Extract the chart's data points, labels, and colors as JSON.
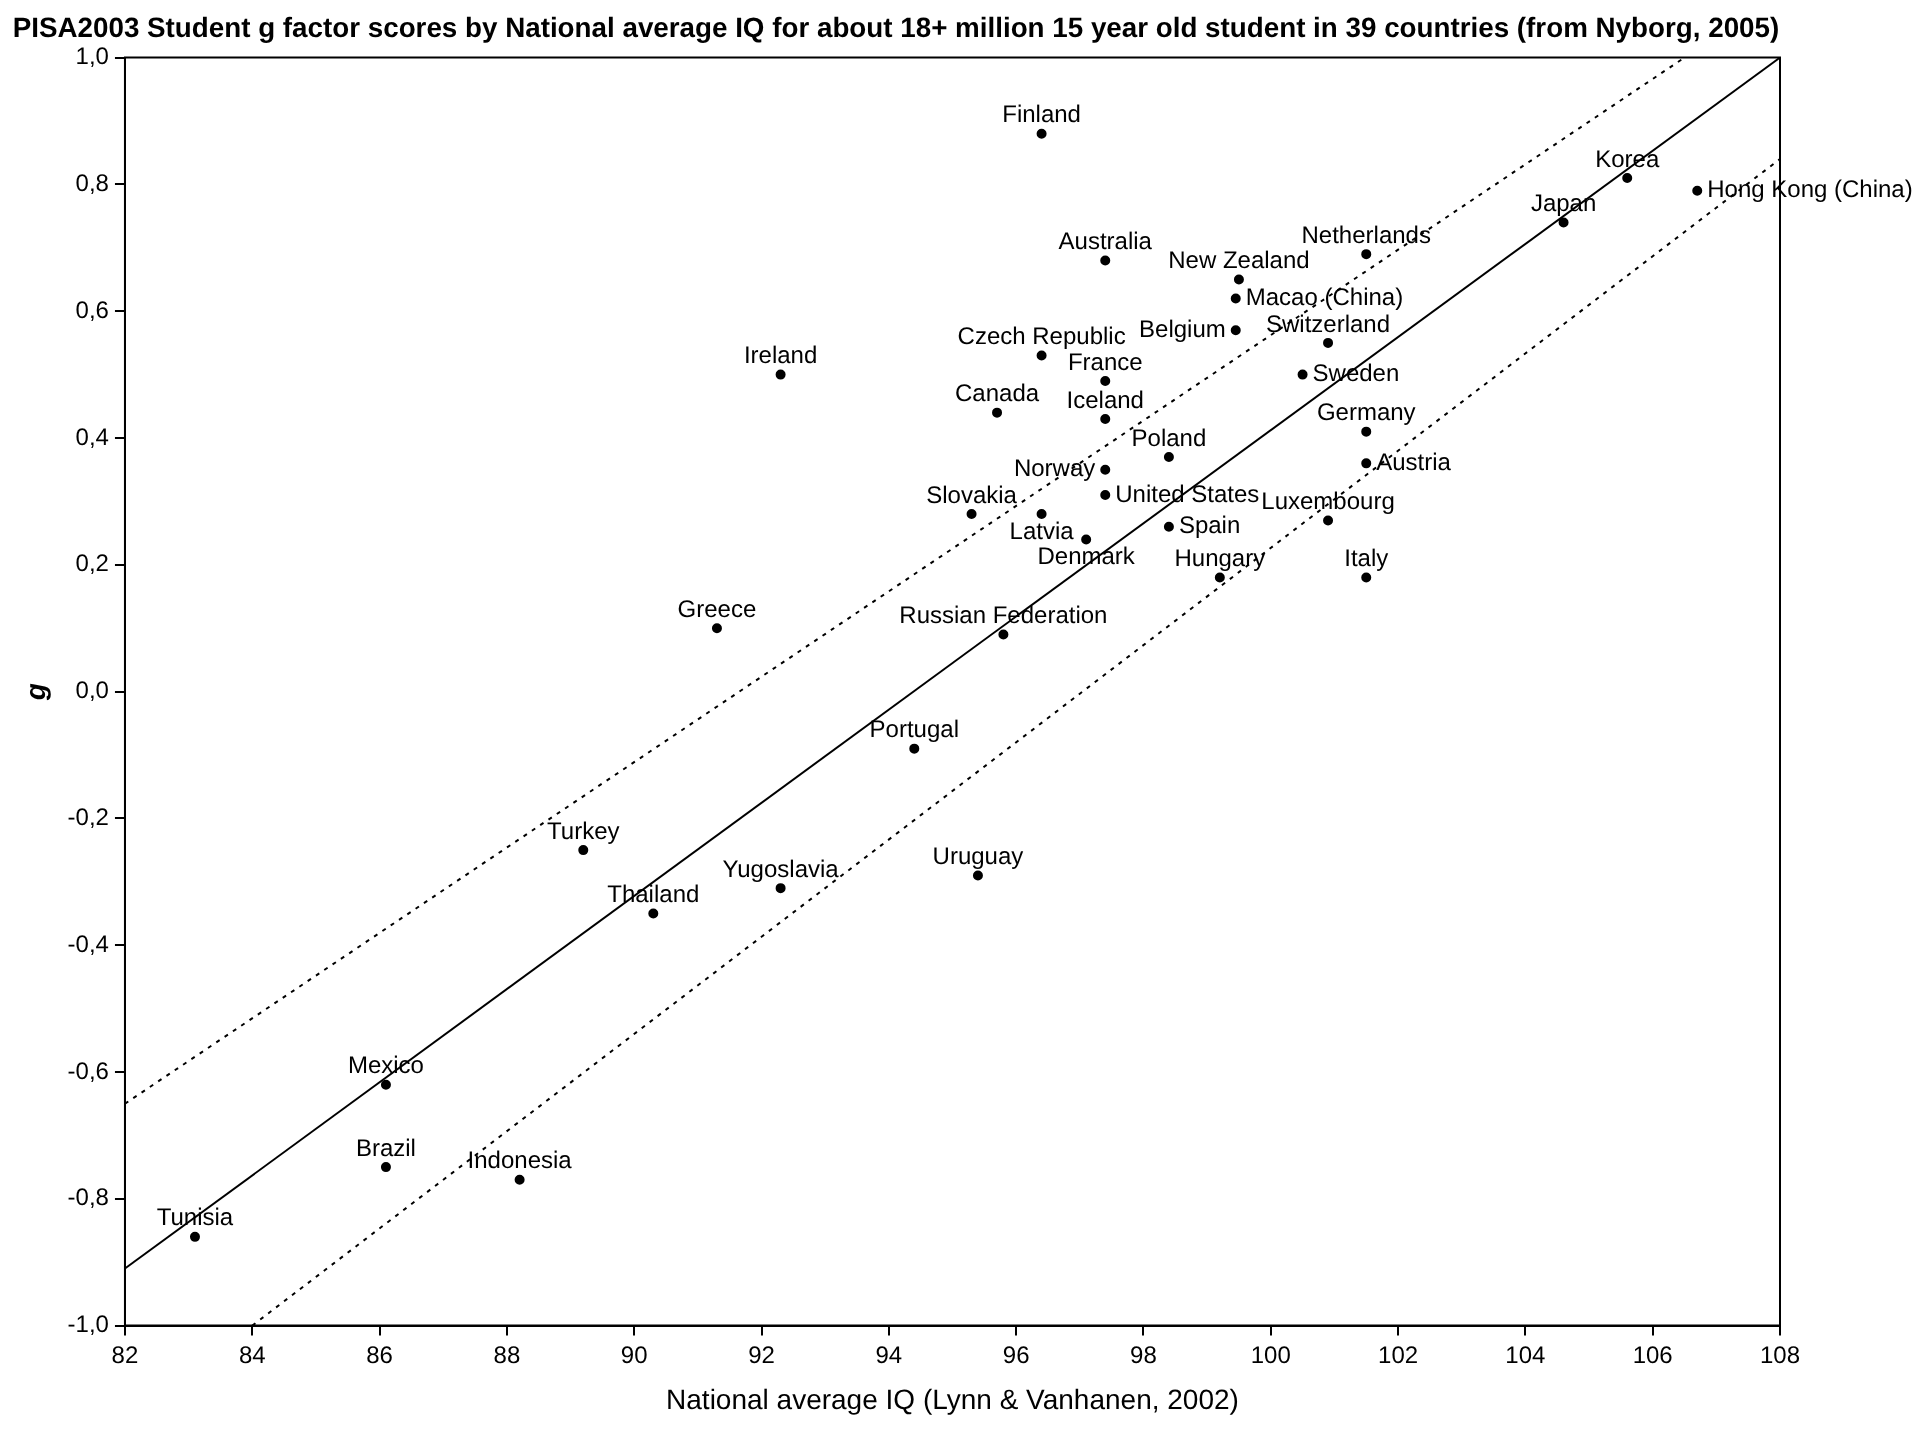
{
  "chart_data": {
    "type": "scatter",
    "title": "PISA2003 Student g factor scores by National average IQ for about 18+ million 15 year old student in 39 countries (from Nyborg, 2005)",
    "xlabel": "National average IQ (Lynn & Vanhanen, 2002)",
    "ylabel": "g",
    "xlim": [
      82,
      108
    ],
    "xticks": [
      82,
      84,
      86,
      88,
      90,
      92,
      94,
      96,
      98,
      100,
      102,
      104,
      106,
      108
    ],
    "ylim": [
      -1.0,
      1.0
    ],
    "yticks": [
      {
        "value": -1.0,
        "label": "-1,0"
      },
      {
        "value": -0.8,
        "label": "-0,8"
      },
      {
        "value": -0.6,
        "label": "-0,6"
      },
      {
        "value": -0.4,
        "label": "-0,4"
      },
      {
        "value": -0.2,
        "label": "-0,2"
      },
      {
        "value": 0,
        "label": "0,0"
      },
      {
        "value": 0.2,
        "label": "0,2"
      },
      {
        "value": 0.4,
        "label": "0,4"
      },
      {
        "value": 0.6,
        "label": "0,6"
      },
      {
        "value": 0.8,
        "label": "0,8"
      },
      {
        "value": 1.0,
        "label": "1,0"
      }
    ],
    "grid": false,
    "legend": false,
    "marker": "circle",
    "series": [
      {
        "name": "Finland",
        "color": "#000000",
        "x": [
          96.4
        ],
        "values": [
          0.88
        ]
      },
      {
        "name": "Australia",
        "color": "#000000",
        "x": [
          97.4
        ],
        "values": [
          0.68
        ]
      },
      {
        "name": "New Zealand",
        "color": "#000000",
        "x": [
          99.5
        ],
        "values": [
          0.65
        ]
      },
      {
        "name": "Netherlands",
        "color": "#000000",
        "x": [
          101.5
        ],
        "values": [
          0.69
        ]
      },
      {
        "name": "Macao (China)",
        "color": "#000000",
        "x": [
          99.45
        ],
        "values": [
          0.62
        ]
      },
      {
        "name": "Belgium",
        "color": "#000000",
        "x": [
          99.45
        ],
        "values": [
          0.57
        ]
      },
      {
        "name": "Switzerland",
        "color": "#000000",
        "x": [
          100.9
        ],
        "values": [
          0.55
        ]
      },
      {
        "name": "Sweden",
        "color": "#000000",
        "x": [
          100.5
        ],
        "values": [
          0.5
        ]
      },
      {
        "name": "Korea",
        "color": "#000000",
        "x": [
          105.6
        ],
        "values": [
          0.81
        ]
      },
      {
        "name": "Hong Kong (China)",
        "color": "#000000",
        "x": [
          106.7
        ],
        "values": [
          0.79
        ]
      },
      {
        "name": "Japan",
        "color": "#000000",
        "x": [
          104.6
        ],
        "values": [
          0.74
        ]
      },
      {
        "name": "Ireland",
        "color": "#000000",
        "x": [
          92.3
        ],
        "values": [
          0.5
        ]
      },
      {
        "name": "Czech Republic",
        "color": "#000000",
        "x": [
          96.4
        ],
        "values": [
          0.53
        ]
      },
      {
        "name": "France",
        "color": "#000000",
        "x": [
          97.4
        ],
        "values": [
          0.49
        ]
      },
      {
        "name": "Canada",
        "color": "#000000",
        "x": [
          95.7
        ],
        "values": [
          0.44
        ]
      },
      {
        "name": "Iceland",
        "color": "#000000",
        "x": [
          97.4
        ],
        "values": [
          0.43
        ]
      },
      {
        "name": "Germany",
        "color": "#000000",
        "x": [
          101.5
        ],
        "values": [
          0.41
        ]
      },
      {
        "name": "Austria",
        "color": "#000000",
        "x": [
          101.5
        ],
        "values": [
          0.36
        ]
      },
      {
        "name": "Poland",
        "color": "#000000",
        "x": [
          98.4
        ],
        "values": [
          0.37
        ]
      },
      {
        "name": "Norway",
        "color": "#000000",
        "x": [
          97.4
        ],
        "values": [
          0.35
        ]
      },
      {
        "name": "United States",
        "color": "#000000",
        "x": [
          97.4
        ],
        "values": [
          0.31
        ]
      },
      {
        "name": "Slovakia",
        "color": "#000000",
        "x": [
          95.3
        ],
        "values": [
          0.28
        ]
      },
      {
        "name": "Latvia",
        "color": "#000000",
        "x": [
          96.4
        ],
        "values": [
          0.28
        ]
      },
      {
        "name": "Spain",
        "color": "#000000",
        "x": [
          98.4
        ],
        "values": [
          0.26
        ]
      },
      {
        "name": "Luxembourg",
        "color": "#000000",
        "x": [
          100.9
        ],
        "values": [
          0.27
        ]
      },
      {
        "name": "Denmark",
        "color": "#000000",
        "x": [
          97.1
        ],
        "values": [
          0.24
        ]
      },
      {
        "name": "Hungary",
        "color": "#000000",
        "x": [
          99.2
        ],
        "values": [
          0.18
        ]
      },
      {
        "name": "Italy",
        "color": "#000000",
        "x": [
          101.5
        ],
        "values": [
          0.18
        ]
      },
      {
        "name": "Greece",
        "color": "#000000",
        "x": [
          91.3
        ],
        "values": [
          0.1
        ]
      },
      {
        "name": "Russian Federation",
        "color": "#000000",
        "x": [
          95.8
        ],
        "values": [
          0.09
        ]
      },
      {
        "name": "Portugal",
        "color": "#000000",
        "x": [
          94.4
        ],
        "values": [
          -0.09
        ]
      },
      {
        "name": "Turkey",
        "color": "#000000",
        "x": [
          89.2
        ],
        "values": [
          -0.25
        ]
      },
      {
        "name": "Thailand",
        "color": "#000000",
        "x": [
          90.3
        ],
        "values": [
          -0.35
        ]
      },
      {
        "name": "Yugoslavia",
        "color": "#000000",
        "x": [
          92.3
        ],
        "values": [
          -0.31
        ]
      },
      {
        "name": "Uruguay",
        "color": "#000000",
        "x": [
          95.4
        ],
        "values": [
          -0.29
        ]
      },
      {
        "name": "Mexico",
        "color": "#000000",
        "x": [
          86.1
        ],
        "values": [
          -0.62
        ]
      },
      {
        "name": "Brazil",
        "color": "#000000",
        "x": [
          86.1
        ],
        "values": [
          -0.75
        ]
      },
      {
        "name": "Indonesia",
        "color": "#000000",
        "x": [
          88.2
        ],
        "values": [
          -0.77
        ]
      },
      {
        "name": "Tunisia",
        "color": "#000000",
        "x": [
          83.1
        ],
        "values": [
          -0.86
        ]
      },
      {
        "type": "line",
        "color": "#000000",
        "line_style": "solid",
        "marker": "none",
        "x": [
          82,
          108
        ],
        "values": [
          -0.91,
          1.0
        ]
      },
      {
        "type": "line",
        "color": "#000000",
        "line_style": "dotted",
        "marker": "none",
        "x": [
          82,
          106.5
        ],
        "values": [
          -0.65,
          1.0
        ]
      },
      {
        "type": "line",
        "color": "#000000",
        "line_style": "dotted",
        "marker": "none",
        "x": [
          84,
          108
        ],
        "values": [
          -1.0,
          0.84
        ]
      }
    ]
  }
}
